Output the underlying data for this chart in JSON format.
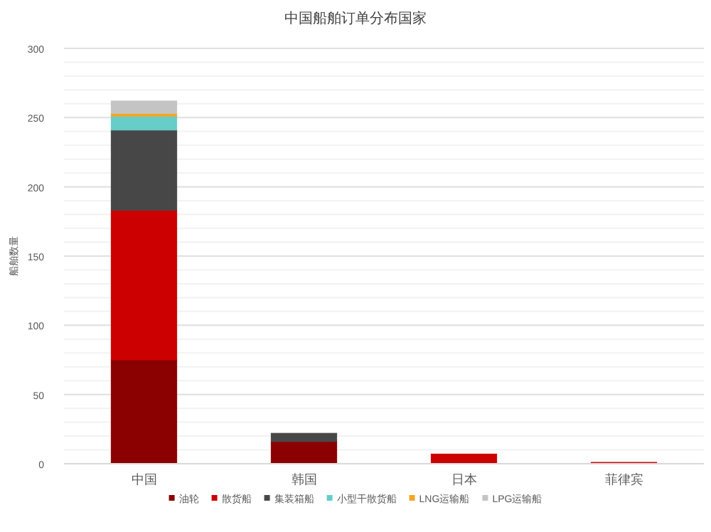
{
  "chart_data": {
    "type": "bar",
    "title": "中国船舶订单分布国家",
    "ylabel": "船舶数量",
    "categories": [
      "中国",
      "韩国",
      "日本",
      "菲律宾"
    ],
    "stacked": true,
    "ylim": [
      0,
      300
    ],
    "yticks": [
      0,
      50,
      100,
      150,
      200,
      250,
      300
    ],
    "grid": "y",
    "legend": "bottom",
    "series": [
      {
        "name": "油轮",
        "color": "#8b0000",
        "values": [
          75,
          16,
          0,
          0
        ]
      },
      {
        "name": "散货船",
        "color": "#cc0000",
        "values": [
          108,
          0,
          7,
          1
        ]
      },
      {
        "name": "集装箱船",
        "color": "#474747",
        "values": [
          58,
          6,
          0,
          0
        ]
      },
      {
        "name": "小型干散货船",
        "color": "#66cdc8",
        "values": [
          10,
          0,
          0,
          0
        ]
      },
      {
        "name": "LNG运输船",
        "color": "#f5a623",
        "values": [
          2,
          0,
          0,
          0
        ]
      },
      {
        "name": "LPG运输船",
        "color": "#c4c4c4",
        "values": [
          9,
          0,
          0,
          0
        ]
      }
    ]
  }
}
